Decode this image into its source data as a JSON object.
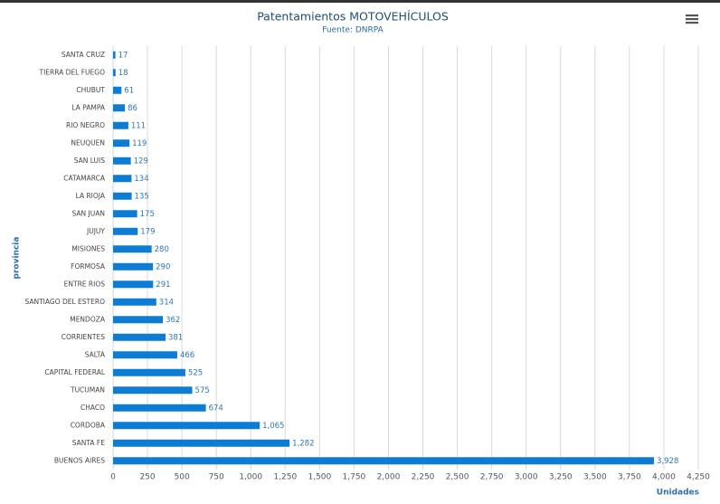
{
  "chart_data": {
    "type": "hbar",
    "title": "Patentamientos MOTOVEHÍCULOS",
    "subtitle": "Fuente: DNRPA",
    "y_label": "provincia",
    "x_label": "Unidades",
    "categories": [
      "SANTA CRUZ",
      "TIERRA DEL FUEGO",
      "CHUBUT",
      "LA PAMPA",
      "RIO NEGRO",
      "NEUQUEN",
      "SAN LUIS",
      "CATAMARCA",
      "LA RIOJA",
      "SAN JUAN",
      "JUJUY",
      "MISIONES",
      "FORMOSA",
      "ENTRE RIOS",
      "SANTIAGO DEL ESTERO",
      "MENDOZA",
      "CORRIENTES",
      "SALTA",
      "CAPITAL FEDERAL",
      "TUCUMAN",
      "CHACO",
      "CORDOBA",
      "SANTA FE",
      "BUENOS AIRES"
    ],
    "values": [
      17,
      18,
      61,
      86,
      111,
      119,
      129,
      134,
      135,
      175,
      179,
      280,
      290,
      291,
      314,
      362,
      381,
      466,
      525,
      575,
      674,
      1065,
      1282,
      3928
    ],
    "value_labels": [
      "17",
      "18",
      "61",
      "86",
      "111",
      "119",
      "129",
      "134",
      "135",
      "175",
      "179",
      "280",
      "290",
      "291",
      "314",
      "362",
      "381",
      "466",
      "525",
      "575",
      "674",
      "1,065",
      "1,282",
      "3,928"
    ],
    "color": "#0c7cd5",
    "xlim": [
      0,
      4250
    ],
    "xticks": [
      0,
      250,
      500,
      750,
      {
        "value": 1000,
        "label": "1,000"
      },
      {
        "value": 1250,
        "label": "1,250"
      },
      {
        "value": 1500,
        "label": "1,500"
      },
      {
        "value": 1750,
        "label": "1,750"
      },
      {
        "value": 2000,
        "label": "2,000"
      },
      {
        "value": 2250,
        "label": "2,250"
      },
      {
        "value": 2500,
        "label": "2,500"
      },
      {
        "value": 2750,
        "label": "2,750"
      },
      {
        "value": 3000,
        "label": "3,000"
      },
      {
        "value": 3250,
        "label": "3,250"
      },
      {
        "value": 3500,
        "label": "3,500"
      },
      {
        "value": 3750,
        "label": "3,750"
      },
      {
        "value": 4000,
        "label": "4,000"
      },
      {
        "value": 4250,
        "label": "4,250"
      }
    ],
    "grid": true
  }
}
